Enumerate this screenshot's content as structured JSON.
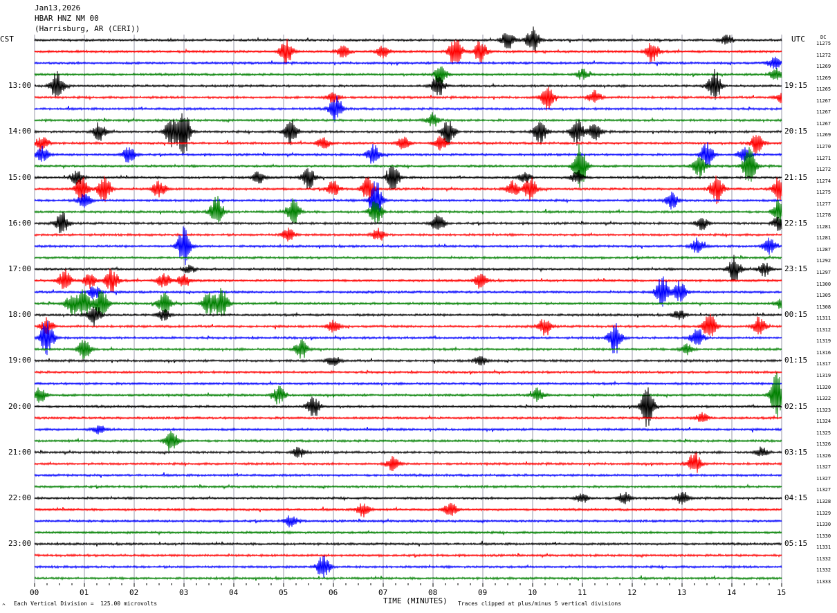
{
  "header": {
    "date": "Jan13,2026",
    "station": "HBAR HNZ NM 00",
    "location": "(Harrisburg, AR (CERI))"
  },
  "left_zone": "CST",
  "right_zone": "UTC",
  "dc_header": "DC",
  "footer": {
    "scale_note": "Each Vertical Division =  125.00 microvolts",
    "xlabel": "TIME (MINUTES)",
    "clip_note": "Traces clipped at plus/minus 5 vertical divisions",
    "corner_mark": "^"
  },
  "chart_data": {
    "type": "line",
    "title": "",
    "xlabel": "TIME (MINUTES)",
    "ylabel": "",
    "xlim": [
      0,
      15
    ],
    "x_tick_labels": [
      "00",
      "01",
      "02",
      "03",
      "04",
      "05",
      "06",
      "07",
      "08",
      "09",
      "10",
      "11",
      "12",
      "13",
      "14",
      "15"
    ],
    "trace_colors": [
      "#000000",
      "#ff0000",
      "#0000ff",
      "#008000"
    ],
    "trace_minutes": 15,
    "hour_labels_cst": [
      "13:00",
      "14:00",
      "15:00",
      "16:00",
      "17:00",
      "18:00",
      "19:00",
      "20:00",
      "21:00",
      "22:00",
      "23:00"
    ],
    "hour_labels_utc": [
      "19:15",
      "20:15",
      "21:15",
      "22:15",
      "23:15",
      "00:15",
      "01:15",
      "02:15",
      "03:15",
      "04:15",
      "05:15"
    ],
    "dc_offsets": [
      11275,
      11272,
      11269,
      11269,
      11265,
      11267,
      11267,
      11267,
      11269,
      11270,
      11271,
      11272,
      11274,
      11275,
      11277,
      11278,
      11281,
      11281,
      11287,
      11292,
      11297,
      11300,
      11305,
      11308,
      11311,
      11312,
      11319,
      11316,
      11317,
      11319,
      11320,
      11322,
      11323,
      11324,
      11325,
      11326,
      11326,
      11327,
      11327,
      11327,
      11328,
      11329,
      11330,
      11330,
      11331,
      11332,
      11332,
      11333
    ],
    "events": [
      {
        "trace": 0,
        "minute": 9.5,
        "amp": 0.9
      },
      {
        "trace": 0,
        "minute": 10.0,
        "amp": 1.3
      },
      {
        "trace": 0,
        "minute": 13.9,
        "amp": 0.5
      },
      {
        "trace": 1,
        "minute": 5.05,
        "amp": 1.3
      },
      {
        "trace": 1,
        "minute": 6.2,
        "amp": 0.6
      },
      {
        "trace": 1,
        "minute": 7.0,
        "amp": 0.6
      },
      {
        "trace": 1,
        "minute": 8.45,
        "amp": 1.6
      },
      {
        "trace": 1,
        "minute": 8.95,
        "amp": 1.1
      },
      {
        "trace": 1,
        "minute": 12.4,
        "amp": 1.1
      },
      {
        "trace": 2,
        "minute": 14.85,
        "amp": 0.6
      },
      {
        "trace": 3,
        "minute": 8.15,
        "amp": 0.9
      },
      {
        "trace": 3,
        "minute": 11.0,
        "amp": 0.5
      },
      {
        "trace": 3,
        "minute": 14.9,
        "amp": 0.6
      },
      {
        "trace": 4,
        "minute": 0.45,
        "amp": 1.4
      },
      {
        "trace": 4,
        "minute": 8.1,
        "amp": 1.1
      },
      {
        "trace": 4,
        "minute": 13.65,
        "amp": 1.6
      },
      {
        "trace": 5,
        "minute": 6.0,
        "amp": 0.6
      },
      {
        "trace": 5,
        "minute": 10.3,
        "amp": 1.2
      },
      {
        "trace": 5,
        "minute": 11.25,
        "amp": 0.7
      },
      {
        "trace": 5,
        "minute": 15.0,
        "amp": 0.5
      },
      {
        "trace": 6,
        "minute": 6.05,
        "amp": 1.3
      },
      {
        "trace": 7,
        "minute": 8.0,
        "amp": 0.7
      },
      {
        "trace": 8,
        "minute": 1.3,
        "amp": 0.9
      },
      {
        "trace": 8,
        "minute": 2.75,
        "amp": 1.6
      },
      {
        "trace": 8,
        "minute": 3.0,
        "amp": 2.4
      },
      {
        "trace": 8,
        "minute": 5.15,
        "amp": 1.3
      },
      {
        "trace": 8,
        "minute": 8.3,
        "amp": 1.3
      },
      {
        "trace": 8,
        "minute": 10.15,
        "amp": 1.3
      },
      {
        "trace": 8,
        "minute": 10.9,
        "amp": 1.3
      },
      {
        "trace": 8,
        "minute": 11.25,
        "amp": 0.8
      },
      {
        "trace": 9,
        "minute": 0.15,
        "amp": 0.8
      },
      {
        "trace": 9,
        "minute": 5.8,
        "amp": 0.6
      },
      {
        "trace": 9,
        "minute": 7.4,
        "amp": 0.7
      },
      {
        "trace": 9,
        "minute": 8.15,
        "amp": 0.8
      },
      {
        "trace": 9,
        "minute": 14.5,
        "amp": 1.0
      },
      {
        "trace": 10,
        "minute": 0.15,
        "amp": 0.8
      },
      {
        "trace": 10,
        "minute": 1.9,
        "amp": 0.9
      },
      {
        "trace": 10,
        "minute": 6.8,
        "amp": 1.0
      },
      {
        "trace": 10,
        "minute": 13.5,
        "amp": 1.3
      },
      {
        "trace": 10,
        "minute": 14.25,
        "amp": 0.7
      },
      {
        "trace": 11,
        "minute": 10.95,
        "amp": 2.4
      },
      {
        "trace": 11,
        "minute": 13.35,
        "amp": 1.2
      },
      {
        "trace": 11,
        "minute": 14.35,
        "amp": 1.9
      },
      {
        "trace": 12,
        "minute": 0.85,
        "amp": 0.7
      },
      {
        "trace": 12,
        "minute": 4.5,
        "amp": 0.6
      },
      {
        "trace": 12,
        "minute": 5.5,
        "amp": 1.1
      },
      {
        "trace": 12,
        "minute": 7.2,
        "amp": 1.3
      },
      {
        "trace": 12,
        "minute": 9.85,
        "amp": 0.5
      },
      {
        "trace": 12,
        "minute": 10.9,
        "amp": 0.7
      },
      {
        "trace": 13,
        "minute": 0.95,
        "amp": 1.3
      },
      {
        "trace": 13,
        "minute": 1.4,
        "amp": 1.4
      },
      {
        "trace": 13,
        "minute": 2.5,
        "amp": 0.9
      },
      {
        "trace": 13,
        "minute": 6.0,
        "amp": 0.8
      },
      {
        "trace": 13,
        "minute": 6.7,
        "amp": 1.3
      },
      {
        "trace": 13,
        "minute": 9.6,
        "amp": 0.8
      },
      {
        "trace": 13,
        "minute": 9.95,
        "amp": 1.2
      },
      {
        "trace": 13,
        "minute": 13.7,
        "amp": 1.5
      },
      {
        "trace": 13,
        "minute": 14.95,
        "amp": 1.3
      },
      {
        "trace": 14,
        "minute": 1.0,
        "amp": 0.8
      },
      {
        "trace": 14,
        "minute": 6.85,
        "amp": 2.0
      },
      {
        "trace": 14,
        "minute": 12.8,
        "amp": 1.0
      },
      {
        "trace": 15,
        "minute": 3.65,
        "amp": 1.6
      },
      {
        "trace": 15,
        "minute": 5.2,
        "amp": 1.3
      },
      {
        "trace": 15,
        "minute": 6.85,
        "amp": 1.3
      },
      {
        "trace": 15,
        "minute": 14.95,
        "amp": 1.2
      },
      {
        "trace": 16,
        "minute": 0.55,
        "amp": 1.1
      },
      {
        "trace": 16,
        "minute": 8.1,
        "amp": 0.9
      },
      {
        "trace": 16,
        "minute": 13.4,
        "amp": 0.6
      },
      {
        "trace": 16,
        "minute": 14.95,
        "amp": 0.8
      },
      {
        "trace": 17,
        "minute": 5.1,
        "amp": 0.7
      },
      {
        "trace": 17,
        "minute": 6.9,
        "amp": 0.6
      },
      {
        "trace": 18,
        "minute": 3.0,
        "amp": 1.9
      },
      {
        "trace": 18,
        "minute": 13.3,
        "amp": 0.8
      },
      {
        "trace": 18,
        "minute": 14.75,
        "amp": 0.8
      },
      {
        "trace": 20,
        "minute": 3.1,
        "amp": 0.4
      },
      {
        "trace": 20,
        "minute": 14.05,
        "amp": 1.3
      },
      {
        "trace": 20,
        "minute": 14.65,
        "amp": 0.7
      },
      {
        "trace": 21,
        "minute": 0.6,
        "amp": 1.1
      },
      {
        "trace": 21,
        "minute": 1.1,
        "amp": 0.8
      },
      {
        "trace": 21,
        "minute": 1.55,
        "amp": 1.2
      },
      {
        "trace": 21,
        "minute": 2.6,
        "amp": 0.8
      },
      {
        "trace": 21,
        "minute": 3.0,
        "amp": 0.7
      },
      {
        "trace": 21,
        "minute": 8.95,
        "amp": 0.7
      },
      {
        "trace": 22,
        "minute": 1.2,
        "amp": 0.7
      },
      {
        "trace": 22,
        "minute": 12.6,
        "amp": 1.6
      },
      {
        "trace": 22,
        "minute": 12.95,
        "amp": 1.1
      },
      {
        "trace": 23,
        "minute": 0.75,
        "amp": 1.1
      },
      {
        "trace": 23,
        "minute": 1.0,
        "amp": 1.4
      },
      {
        "trace": 23,
        "minute": 1.35,
        "amp": 1.6
      },
      {
        "trace": 23,
        "minute": 2.6,
        "amp": 1.2
      },
      {
        "trace": 23,
        "minute": 3.5,
        "amp": 1.1
      },
      {
        "trace": 23,
        "minute": 3.75,
        "amp": 1.6
      },
      {
        "trace": 23,
        "minute": 15.0,
        "amp": 0.6
      },
      {
        "trace": 24,
        "minute": 1.2,
        "amp": 1.2
      },
      {
        "trace": 24,
        "minute": 2.6,
        "amp": 0.6
      },
      {
        "trace": 24,
        "minute": 12.95,
        "amp": 0.5
      },
      {
        "trace": 25,
        "minute": 0.25,
        "amp": 0.8
      },
      {
        "trace": 25,
        "minute": 6.0,
        "amp": 0.6
      },
      {
        "trace": 25,
        "minute": 10.25,
        "amp": 0.9
      },
      {
        "trace": 25,
        "minute": 13.55,
        "amp": 1.4
      },
      {
        "trace": 25,
        "minute": 14.55,
        "amp": 1.0
      },
      {
        "trace": 26,
        "minute": 0.25,
        "amp": 1.9
      },
      {
        "trace": 26,
        "minute": 11.65,
        "amp": 1.6
      },
      {
        "trace": 26,
        "minute": 13.3,
        "amp": 1.1
      },
      {
        "trace": 27,
        "minute": 1.0,
        "amp": 1.0
      },
      {
        "trace": 27,
        "minute": 5.35,
        "amp": 1.0
      },
      {
        "trace": 27,
        "minute": 13.1,
        "amp": 0.5
      },
      {
        "trace": 28,
        "minute": 6.0,
        "amp": 0.5
      },
      {
        "trace": 28,
        "minute": 8.95,
        "amp": 0.5
      },
      {
        "trace": 31,
        "minute": 0.1,
        "amp": 0.8
      },
      {
        "trace": 31,
        "minute": 4.9,
        "amp": 0.9
      },
      {
        "trace": 31,
        "minute": 10.1,
        "amp": 0.7
      },
      {
        "trace": 31,
        "minute": 14.9,
        "amp": 2.4
      },
      {
        "trace": 32,
        "minute": 5.6,
        "amp": 1.1
      },
      {
        "trace": 32,
        "minute": 12.3,
        "amp": 2.1
      },
      {
        "trace": 33,
        "minute": 13.4,
        "amp": 0.5
      },
      {
        "trace": 34,
        "minute": 1.3,
        "amp": 0.4
      },
      {
        "trace": 35,
        "minute": 2.75,
        "amp": 1.2
      },
      {
        "trace": 36,
        "minute": 5.3,
        "amp": 0.5
      },
      {
        "trace": 36,
        "minute": 14.6,
        "amp": 0.5
      },
      {
        "trace": 37,
        "minute": 7.2,
        "amp": 0.7
      },
      {
        "trace": 37,
        "minute": 13.25,
        "amp": 1.2
      },
      {
        "trace": 40,
        "minute": 11.0,
        "amp": 0.5
      },
      {
        "trace": 40,
        "minute": 11.85,
        "amp": 0.6
      },
      {
        "trace": 40,
        "minute": 13.0,
        "amp": 0.6
      },
      {
        "trace": 41,
        "minute": 6.6,
        "amp": 0.7
      },
      {
        "trace": 41,
        "minute": 8.35,
        "amp": 0.7
      },
      {
        "trace": 42,
        "minute": 5.15,
        "amp": 0.6
      },
      {
        "trace": 46,
        "minute": 5.8,
        "amp": 1.3
      }
    ]
  }
}
